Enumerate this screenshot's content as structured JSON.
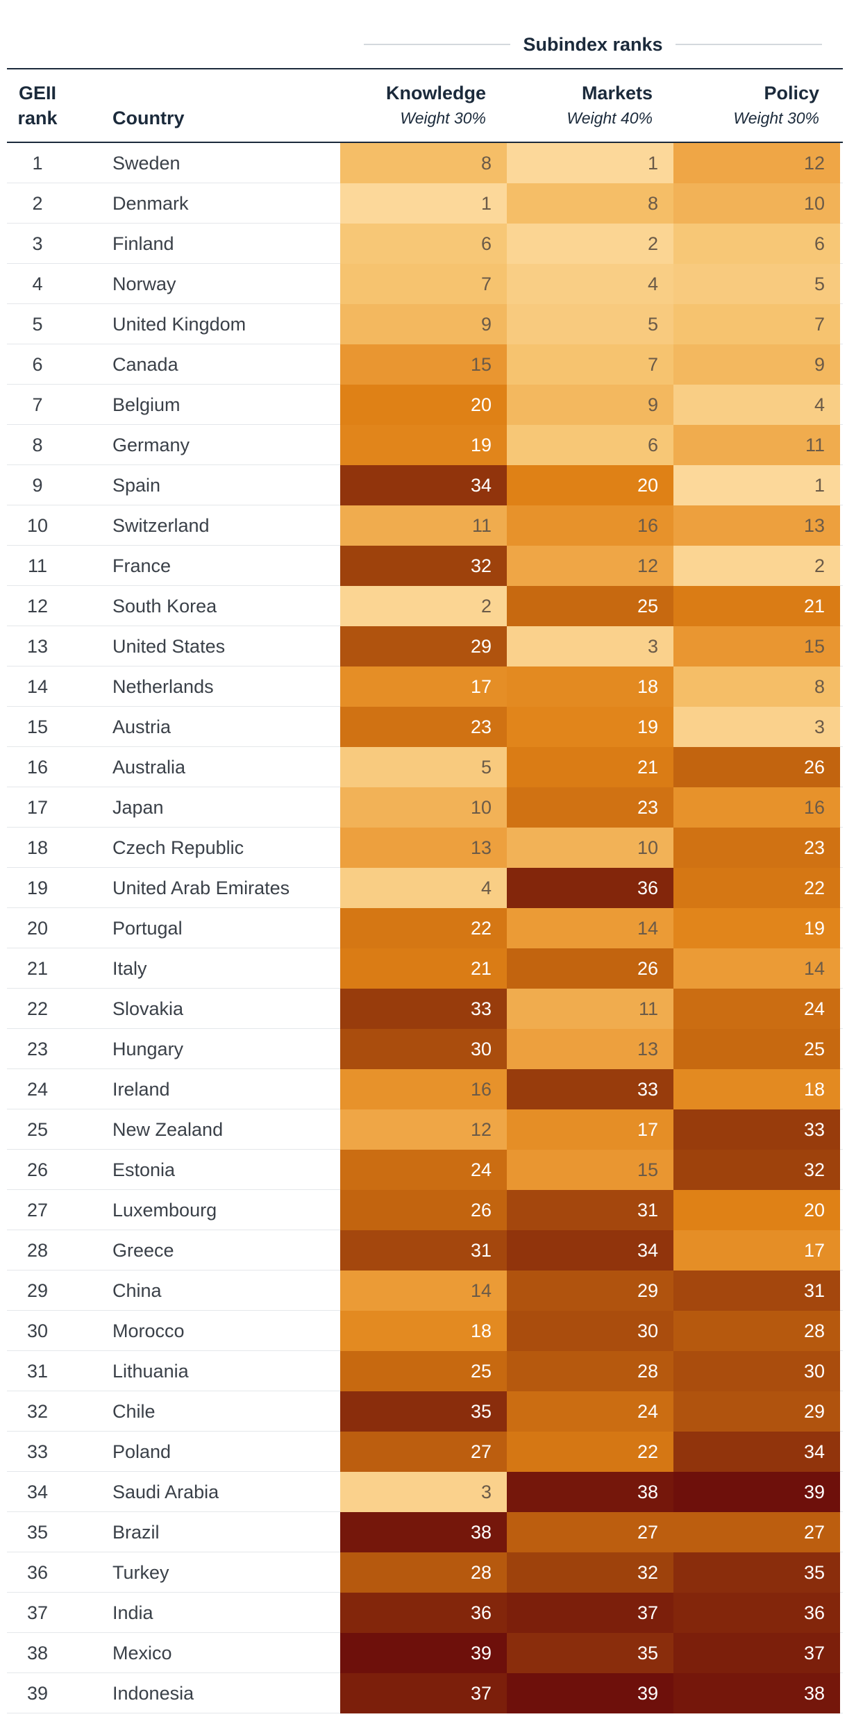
{
  "chart_data": {
    "type": "table",
    "group_header": "Subindex ranks",
    "columns": {
      "rank": "GEII rank",
      "country": "Country",
      "knowledge": {
        "name": "Knowledge",
        "weight": "Weight 30%"
      },
      "markets": {
        "name": "Markets",
        "weight": "Weight 40%"
      },
      "policy": {
        "name": "Policy",
        "weight": "Weight 30%"
      }
    },
    "rows": [
      {
        "rank": 1,
        "country": "Sweden",
        "knowledge": 8,
        "markets": 1,
        "policy": 12
      },
      {
        "rank": 2,
        "country": "Denmark",
        "knowledge": 1,
        "markets": 8,
        "policy": 10
      },
      {
        "rank": 3,
        "country": "Finland",
        "knowledge": 6,
        "markets": 2,
        "policy": 6
      },
      {
        "rank": 4,
        "country": "Norway",
        "knowledge": 7,
        "markets": 4,
        "policy": 5
      },
      {
        "rank": 5,
        "country": "United Kingdom",
        "knowledge": 9,
        "markets": 5,
        "policy": 7
      },
      {
        "rank": 6,
        "country": "Canada",
        "knowledge": 15,
        "markets": 7,
        "policy": 9
      },
      {
        "rank": 7,
        "country": "Belgium",
        "knowledge": 20,
        "markets": 9,
        "policy": 4
      },
      {
        "rank": 8,
        "country": "Germany",
        "knowledge": 19,
        "markets": 6,
        "policy": 11
      },
      {
        "rank": 9,
        "country": "Spain",
        "knowledge": 34,
        "markets": 20,
        "policy": 1
      },
      {
        "rank": 10,
        "country": "Switzerland",
        "knowledge": 11,
        "markets": 16,
        "policy": 13
      },
      {
        "rank": 11,
        "country": "France",
        "knowledge": 32,
        "markets": 12,
        "policy": 2
      },
      {
        "rank": 12,
        "country": "South Korea",
        "knowledge": 2,
        "markets": 25,
        "policy": 21
      },
      {
        "rank": 13,
        "country": "United States",
        "knowledge": 29,
        "markets": 3,
        "policy": 15
      },
      {
        "rank": 14,
        "country": "Netherlands",
        "knowledge": 17,
        "markets": 18,
        "policy": 8
      },
      {
        "rank": 15,
        "country": "Austria",
        "knowledge": 23,
        "markets": 19,
        "policy": 3
      },
      {
        "rank": 16,
        "country": "Australia",
        "knowledge": 5,
        "markets": 21,
        "policy": 26
      },
      {
        "rank": 17,
        "country": "Japan",
        "knowledge": 10,
        "markets": 23,
        "policy": 16
      },
      {
        "rank": 18,
        "country": "Czech Republic",
        "knowledge": 13,
        "markets": 10,
        "policy": 23
      },
      {
        "rank": 19,
        "country": "United Arab Emirates",
        "knowledge": 4,
        "markets": 36,
        "policy": 22
      },
      {
        "rank": 20,
        "country": "Portugal",
        "knowledge": 22,
        "markets": 14,
        "policy": 19
      },
      {
        "rank": 21,
        "country": "Italy",
        "knowledge": 21,
        "markets": 26,
        "policy": 14
      },
      {
        "rank": 22,
        "country": "Slovakia",
        "knowledge": 33,
        "markets": 11,
        "policy": 24
      },
      {
        "rank": 23,
        "country": "Hungary",
        "knowledge": 30,
        "markets": 13,
        "policy": 25
      },
      {
        "rank": 24,
        "country": "Ireland",
        "knowledge": 16,
        "markets": 33,
        "policy": 18
      },
      {
        "rank": 25,
        "country": "New Zealand",
        "knowledge": 12,
        "markets": 17,
        "policy": 33
      },
      {
        "rank": 26,
        "country": "Estonia",
        "knowledge": 24,
        "markets": 15,
        "policy": 32
      },
      {
        "rank": 27,
        "country": "Luxembourg",
        "knowledge": 26,
        "markets": 31,
        "policy": 20
      },
      {
        "rank": 28,
        "country": "Greece",
        "knowledge": 31,
        "markets": 34,
        "policy": 17
      },
      {
        "rank": 29,
        "country": "China",
        "knowledge": 14,
        "markets": 29,
        "policy": 31
      },
      {
        "rank": 30,
        "country": "Morocco",
        "knowledge": 18,
        "markets": 30,
        "policy": 28
      },
      {
        "rank": 31,
        "country": "Lithuania",
        "knowledge": 25,
        "markets": 28,
        "policy": 30
      },
      {
        "rank": 32,
        "country": "Chile",
        "knowledge": 35,
        "markets": 24,
        "policy": 29
      },
      {
        "rank": 33,
        "country": "Poland",
        "knowledge": 27,
        "markets": 22,
        "policy": 34
      },
      {
        "rank": 34,
        "country": "Saudi Arabia",
        "knowledge": 3,
        "markets": 38,
        "policy": 39
      },
      {
        "rank": 35,
        "country": "Brazil",
        "knowledge": 38,
        "markets": 27,
        "policy": 27
      },
      {
        "rank": 36,
        "country": "Turkey",
        "knowledge": 28,
        "markets": 32,
        "policy": 35
      },
      {
        "rank": 37,
        "country": "India",
        "knowledge": 36,
        "markets": 37,
        "policy": 36
      },
      {
        "rank": 38,
        "country": "Mexico",
        "knowledge": 39,
        "markets": 35,
        "policy": 37
      },
      {
        "rank": 39,
        "country": "Indonesia",
        "knowledge": 37,
        "markets": 39,
        "policy": 38
      }
    ],
    "color_scale": {
      "min": 1,
      "max": 39,
      "stops": [
        "#fcd89a",
        "#f6c26d",
        "#ec9c38",
        "#df8116",
        "#c0620f",
        "#9a3e0c",
        "#6e100b"
      ]
    }
  }
}
